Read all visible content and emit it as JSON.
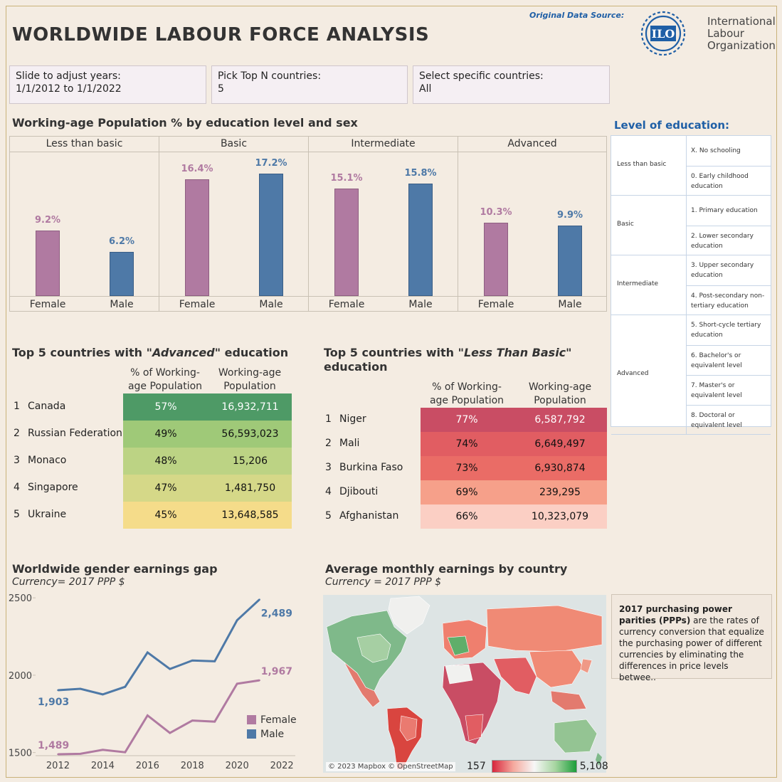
{
  "header": {
    "title": "WORLDWIDE LABOUR FORCE ANALYSIS",
    "source_label": "Original Data Source:",
    "org_lines": [
      "International",
      "Labour",
      "Organization"
    ],
    "logo_text": "ILO"
  },
  "filters": [
    {
      "label": "Slide to adjust years:",
      "value": "1/1/2012 to 1/1/2022"
    },
    {
      "label": "Pick Top N countries:",
      "value": "5"
    },
    {
      "label": "Select specific countries:",
      "value": "All"
    }
  ],
  "edu_chart": {
    "title": "Working-age Population % by education level and sex",
    "max": 20,
    "groups": [
      {
        "name": "Less than basic",
        "female": 9.2,
        "male": 6.2,
        "female_label": "9.2%",
        "male_label": "6.2%"
      },
      {
        "name": "Basic",
        "female": 16.4,
        "male": 17.2,
        "female_label": "16.4%",
        "male_label": "17.2%"
      },
      {
        "name": "Intermediate",
        "female": 15.1,
        "male": 15.8,
        "female_label": "15.1%",
        "male_label": "15.8%"
      },
      {
        "name": "Advanced",
        "female": 10.3,
        "male": 9.9,
        "female_label": "10.3%",
        "male_label": "9.9%"
      }
    ],
    "female_label": "Female",
    "male_label": "Male",
    "colors": {
      "female": "#b07aa1",
      "male": "#4e79a7"
    }
  },
  "edu_legend": {
    "title": "Level of education:",
    "groups": [
      {
        "name": "Less than basic",
        "items": [
          "X. No schooling",
          "0. Early childhood education"
        ]
      },
      {
        "name": "Basic",
        "items": [
          "1. Primary education",
          "2. Lower secondary education"
        ]
      },
      {
        "name": "Intermediate",
        "items": [
          "3. Upper secondary education",
          "4. Post-secondary non-tertiary education"
        ]
      },
      {
        "name": "Advanced",
        "items": [
          "5. Short-cycle tertiary education",
          "6. Bachelor's or equivalent level",
          "7. Master's or equivalent level",
          "8. Doctoral or equivalent level"
        ]
      }
    ]
  },
  "advanced_table": {
    "title_pre": "Top 5 countries with ",
    "title_em": "\"Advanced\"",
    "title_post": " education",
    "col1": "% of Working-age Population",
    "col2": "Working-age Population",
    "rows": [
      {
        "rank": "1",
        "country": "Canada",
        "pct": "57%",
        "pop": "16,932,711",
        "color": "#4e9a66"
      },
      {
        "rank": "2",
        "country": "Russian Federation",
        "pct": "49%",
        "pop": "56,593,023",
        "color": "#9fc978"
      },
      {
        "rank": "3",
        "country": "Monaco",
        "pct": "48%",
        "pop": "15,206",
        "color": "#bcd384"
      },
      {
        "rank": "4",
        "country": "Singapore",
        "pct": "47%",
        "pop": "1,481,750",
        "color": "#d5d888"
      },
      {
        "rank": "5",
        "country": "Ukraine",
        "pct": "45%",
        "pop": "13,648,585",
        "color": "#f5dc8a"
      }
    ]
  },
  "lessbasic_table": {
    "title_pre": "Top 5 countries with ",
    "title_em": "\"Less Than Basic\"",
    "title_post": "education",
    "col1": "% of Working-age Population",
    "col2": "Working-age Population",
    "rows": [
      {
        "rank": "1",
        "country": "Niger",
        "pct": "77%",
        "pop": "6,587,792",
        "color": "#c94d64"
      },
      {
        "rank": "2",
        "country": "Mali",
        "pct": "74%",
        "pop": "6,649,497",
        "color": "#e15d62"
      },
      {
        "rank": "3",
        "country": "Burkina Faso",
        "pct": "73%",
        "pop": "6,930,874",
        "color": "#ea6c66"
      },
      {
        "rank": "4",
        "country": "Djibouti",
        "pct": "69%",
        "pop": "239,295",
        "color": "#f6a08a"
      },
      {
        "rank": "5",
        "country": "Afghanistan",
        "pct": "66%",
        "pop": "10,323,079",
        "color": "#fbcfc4"
      }
    ]
  },
  "earnings_chart": {
    "title": "Worldwide gender earnings gap",
    "subtitle": "Currency= 2017 PPP $",
    "yticks": [
      "2500",
      "2000",
      "1500"
    ],
    "xticks": [
      "2012",
      "2014",
      "2016",
      "2018",
      "2020",
      "2022"
    ],
    "legend": [
      "Female",
      "Male"
    ],
    "start_labels": {
      "male": "1,903",
      "female": "1,489"
    },
    "end_labels": {
      "male": "2,489",
      "female": "1,967"
    }
  },
  "chart_data": {
    "type": "line",
    "x": [
      2012,
      2013,
      2014,
      2015,
      2016,
      2017,
      2018,
      2019,
      2020,
      2021
    ],
    "series": [
      {
        "name": "Male",
        "values": [
          1903,
          1912,
          1876,
          1925,
          2147,
          2040,
          2095,
          2090,
          2355,
          2489
        ]
      },
      {
        "name": "Female",
        "values": [
          1489,
          1492,
          1518,
          1502,
          1740,
          1627,
          1707,
          1700,
          1945,
          1967
        ]
      }
    ],
    "xlim": [
      2011,
      2022.6
    ],
    "ylim": [
      1480,
      2510
    ],
    "colors": {
      "Male": "#4e79a7",
      "Female": "#b07aa1"
    }
  },
  "map": {
    "title": "Average monthly earnings by country",
    "subtitle": "Currency = 2017 PPP $",
    "attribution": "© 2023 Mapbox © OpenStreetMap",
    "legend_min": "157",
    "legend_max": "5,108"
  },
  "ppp_note": {
    "bold": "2017 purchasing power parities (PPPs)",
    "text": " are the rates of currency conversion that equalize the purchasing power of different currencies by eliminating the differences in price levels betwee.."
  }
}
